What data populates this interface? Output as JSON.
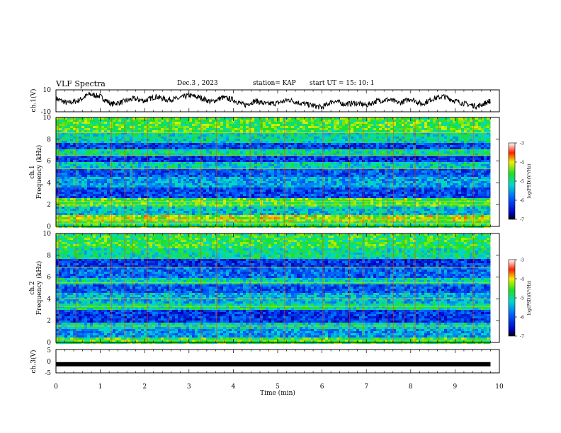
{
  "header": {
    "title": "VLF Spectra",
    "date": "Dec.3 , 2023",
    "station": "station= KAP",
    "start_ut": "start UT = 15: 10: 1"
  },
  "chart_data": [
    {
      "type": "line",
      "panel": "ch1-waveform",
      "ylabel": "ch.1(V)",
      "yticks": [
        "10",
        "-10"
      ],
      "ylim": [
        -10,
        10
      ],
      "xlim": [
        0,
        10
      ],
      "xmax_data": 9.8,
      "color": "#000000",
      "description_values": "noisy oscillating trace mostly between -7 and 6 V",
      "x": [
        0,
        0.25,
        0.5,
        0.75,
        1,
        1.25,
        1.5,
        1.75,
        2,
        2.25,
        2.5,
        2.75,
        3,
        3.25,
        3.5,
        3.75,
        4,
        4.25,
        4.5,
        4.75,
        5,
        5.25,
        5.5,
        5.75,
        6,
        6.25,
        6.5,
        6.75,
        7,
        7.25,
        7.5,
        7.75,
        8,
        8.25,
        8.5,
        8.75,
        9,
        9.25,
        9.5,
        9.75,
        9.8
      ],
      "y": [
        2,
        -2,
        0,
        6,
        4,
        -3,
        -1,
        2,
        0,
        4,
        1,
        2,
        5,
        3,
        -1,
        3,
        1,
        -4,
        0,
        -3,
        -2,
        1,
        -2,
        -4,
        -6,
        0,
        -3,
        -2,
        -4,
        0,
        1,
        -2,
        2,
        -3,
        2,
        4,
        0,
        -3,
        -5,
        -1,
        0
      ]
    },
    {
      "type": "heatmap",
      "panel": "ch1-spectrogram",
      "ylabel": "Frequency (kHz)",
      "channel_label": "ch.1",
      "ylim": [
        0,
        10
      ],
      "yticks": [
        "0",
        "2",
        "4",
        "6",
        "8",
        "10"
      ],
      "xlim": [
        0,
        10
      ],
      "colorbar": {
        "label": "log(PSD)(V²/Hz)",
        "ticks": [
          "-3",
          "-4",
          "-5",
          "-6",
          "-7"
        ],
        "range": [
          -7,
          -3
        ]
      },
      "bands_kHz": [
        {
          "from": 0.0,
          "to": 0.4,
          "level": -4.8
        },
        {
          "from": 0.4,
          "to": 1.0,
          "level": -4.2
        },
        {
          "from": 1.0,
          "to": 1.9,
          "level": -5.3
        },
        {
          "from": 1.9,
          "to": 2.6,
          "level": -4.6
        },
        {
          "from": 2.6,
          "to": 3.6,
          "level": -6.1
        },
        {
          "from": 3.6,
          "to": 4.6,
          "level": -5.5
        },
        {
          "from": 4.6,
          "to": 5.4,
          "level": -6.0
        },
        {
          "from": 5.4,
          "to": 6.0,
          "level": -5.2
        },
        {
          "from": 6.0,
          "to": 6.5,
          "level": -6.2
        },
        {
          "from": 6.5,
          "to": 7.0,
          "level": -5.0
        },
        {
          "from": 7.0,
          "to": 7.6,
          "level": -6.1
        },
        {
          "from": 7.6,
          "to": 8.6,
          "level": -5.1
        },
        {
          "from": 8.6,
          "to": 10.0,
          "level": -4.6
        }
      ],
      "lines_kHz": [
        0.3,
        0.6,
        2.0,
        2.3,
        5.3,
        6.5,
        8.6
      ],
      "spikes_min": [
        0.06,
        0.45,
        1.25,
        1.55,
        1.72,
        2.07,
        2.55,
        3.27,
        3.62,
        4.38,
        4.63,
        5.15,
        6.02,
        6.62,
        6.93,
        7.47,
        7.61,
        7.85,
        8.1,
        8.63,
        9.42
      ]
    },
    {
      "type": "heatmap",
      "panel": "ch2-spectrogram",
      "ylabel": "Frequency (kHz)",
      "channel_label": "ch.2",
      "ylim": [
        0,
        10
      ],
      "yticks": [
        "0",
        "2",
        "4",
        "6",
        "8",
        "10"
      ],
      "xlim": [
        0,
        10
      ],
      "colorbar": {
        "label": "log(PSD)(V²/Hz)",
        "ticks": [
          "-3",
          "-4",
          "-5",
          "-6",
          "-7"
        ],
        "range": [
          -7,
          -3
        ]
      },
      "bands_kHz": [
        {
          "from": 0.0,
          "to": 0.4,
          "level": -4.6
        },
        {
          "from": 0.4,
          "to": 1.3,
          "level": -5.6
        },
        {
          "from": 1.3,
          "to": 1.9,
          "level": -5.2
        },
        {
          "from": 1.9,
          "to": 3.0,
          "level": -6.2
        },
        {
          "from": 3.0,
          "to": 3.6,
          "level": -5.0
        },
        {
          "from": 3.6,
          "to": 4.6,
          "level": -5.4
        },
        {
          "from": 4.6,
          "to": 5.3,
          "level": -6.0
        },
        {
          "from": 5.3,
          "to": 6.0,
          "level": -5.1
        },
        {
          "from": 6.0,
          "to": 6.8,
          "level": -5.9
        },
        {
          "from": 6.8,
          "to": 7.6,
          "level": -6.2
        },
        {
          "from": 7.6,
          "to": 8.6,
          "level": -5.0
        },
        {
          "from": 8.6,
          "to": 10.0,
          "level": -4.7
        }
      ],
      "lines_kHz": [
        0.2,
        1.5,
        3.3,
        4.0,
        5.5,
        6.9
      ],
      "spikes_min": [
        0.06,
        0.45,
        1.25,
        1.55,
        1.72,
        2.07,
        2.55,
        3.27,
        3.62,
        4.38,
        4.63,
        5.15,
        6.02,
        6.62,
        6.93,
        7.47,
        7.61,
        7.85,
        8.1,
        8.63,
        9.42
      ]
    },
    {
      "type": "line",
      "panel": "ch3-waveform",
      "ylabel": "ch.3(V)",
      "yticks": [
        "5",
        "0",
        "-5"
      ],
      "ylim": [
        -5,
        5
      ],
      "xlim": [
        0,
        10
      ],
      "xlabel": "Time (min)",
      "xticks": [
        "0",
        "1",
        "2",
        "3",
        "4",
        "5",
        "6",
        "7",
        "8",
        "9",
        "10"
      ],
      "color": "#000000",
      "x": [
        0,
        9.8
      ],
      "y": [
        -1.3,
        -1.3
      ]
    }
  ]
}
